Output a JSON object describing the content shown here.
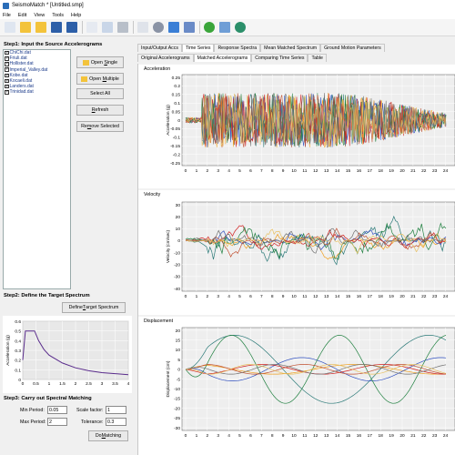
{
  "window": {
    "title": "SeismoMatch * [Untitled.smp]"
  },
  "menu": [
    "File",
    "Edit",
    "View",
    "Tools",
    "Help"
  ],
  "toolbar_icons": [
    {
      "name": "new-icon",
      "color": "#dfe6f0"
    },
    {
      "name": "open-folder-icon",
      "color": "#f3c33b"
    },
    {
      "name": "open-folder-alt-icon",
      "color": "#f3c33b"
    },
    {
      "name": "save-icon",
      "color": "#2d5fa8"
    },
    {
      "name": "save-as-icon",
      "color": "#2d5fa8"
    },
    {
      "name": "copy-icon",
      "color": "#e6eaf1"
    },
    {
      "name": "export-icon",
      "color": "#c9d6e8"
    },
    {
      "name": "print-icon",
      "color": "#b8bfc9"
    },
    {
      "name": "document-settings-icon",
      "color": "#dfe3ea"
    },
    {
      "name": "settings-gear-icon",
      "color": "#8a93a5"
    },
    {
      "name": "colors-icon",
      "color": "#3b7fd6"
    },
    {
      "name": "import-icon",
      "color": "#6a8bc7"
    },
    {
      "name": "help-icon",
      "color": "#3aa53a"
    },
    {
      "name": "tools-icon",
      "color": "#6f9ed6"
    },
    {
      "name": "website-globe-icon",
      "color": "#2b8f6a"
    }
  ],
  "step1": {
    "title": "Step1:  Input the Source Accelerograms",
    "files": [
      "ChiChi.dat",
      "Friuli.dat",
      "Hollister.dat",
      "Imperial_Valley.dat",
      "Kobe.dat",
      "Kocaeli.dat",
      "Landers.dat",
      "Trinidad.dat"
    ],
    "open_single_pre": "Open ",
    "open_single_u": "S",
    "open_single_post": "ingle",
    "open_multiple_pre": "Open ",
    "open_multiple_u": "M",
    "open_multiple_post": "ultiple",
    "select_all": "Select All",
    "refresh_u": "R",
    "refresh_post": "efresh",
    "remove_pre": "Re",
    "remove_u": "m",
    "remove_post": "ove Selected"
  },
  "step2": {
    "title": "Step2:  Define the Target Spectrum",
    "define_pre": "Define ",
    "define_u": "T",
    "define_post": "arget Spectrum",
    "plot": {
      "ylabel": "Acceleration (g)",
      "yticks": [
        "0.6",
        "0.5",
        "0.4",
        "0.3",
        "0.2",
        "0.1",
        "0"
      ],
      "xticks": [
        "0",
        "0.5",
        "1",
        "1.5",
        "2",
        "2.5",
        "3",
        "3.5",
        "4"
      ],
      "color": "#5a2c8c"
    }
  },
  "step3": {
    "title": "Step3:  Carry out Spectral Matching",
    "min_period_label": "Min Period:",
    "min_period": "0.05",
    "max_period_label": "Max Period:",
    "max_period": "2",
    "scale_factor_label": "Scale factor:",
    "scale_factor": "1",
    "tolerance_label": "Tolerance:",
    "tolerance": "0.3",
    "do_matching_pre": "Do ",
    "do_matching_u": "M",
    "do_matching_post": "atching"
  },
  "tabs_top": [
    "Input/Output Accs",
    "Time Series",
    "Response Spectra",
    "Mean Matched Spectrum",
    "Ground Motion Parameters"
  ],
  "tabs_sub": [
    "Original Accelerograms",
    "Matched Accelerograms",
    "Comparing Time Series",
    "Table"
  ],
  "series_colors": [
    "#2b7a78",
    "#f0a020",
    "#3050c0",
    "#d02020",
    "#208040",
    "#c05030",
    "#707070",
    "#e8c060"
  ],
  "charts": {
    "acceleration": {
      "title": "Acceleration",
      "ylabel": "Acceleration (g)",
      "yticks": [
        "0.25",
        "0.2",
        "0.15",
        "0.1",
        "0.05",
        "0",
        "-0.05",
        "-0.1",
        "-0.15",
        "-0.2",
        "-0.25"
      ],
      "xticks": [
        "0",
        "1",
        "2",
        "3",
        "4",
        "5",
        "6",
        "7",
        "8",
        "9",
        "10",
        "11",
        "12",
        "13",
        "14",
        "15",
        "16",
        "17",
        "18",
        "19",
        "20",
        "21",
        "22",
        "23",
        "24"
      ]
    },
    "velocity": {
      "title": "Velocity",
      "ylabel": "Velocity (cm/sec)",
      "yticks": [
        "30",
        "20",
        "10",
        "0",
        "-10",
        "-20",
        "-30",
        "-40"
      ],
      "xticks": [
        "0",
        "1",
        "2",
        "3",
        "4",
        "5",
        "6",
        "7",
        "8",
        "9",
        "10",
        "11",
        "12",
        "13",
        "14",
        "15",
        "16",
        "17",
        "18",
        "19",
        "20",
        "21",
        "22",
        "23",
        "24"
      ]
    },
    "displacement": {
      "title": "Displacement",
      "ylabel": "Displacement (cm)",
      "yticks": [
        "20",
        "15",
        "10",
        "5",
        "0",
        "-5",
        "-10",
        "-15",
        "-20",
        "-25",
        "-30"
      ],
      "xticks": [
        "0",
        "1",
        "2",
        "3",
        "4",
        "5",
        "6",
        "7",
        "8",
        "9",
        "10",
        "11",
        "12",
        "13",
        "14",
        "15",
        "16",
        "17",
        "18",
        "19",
        "20",
        "21",
        "22",
        "23",
        "24"
      ]
    }
  }
}
